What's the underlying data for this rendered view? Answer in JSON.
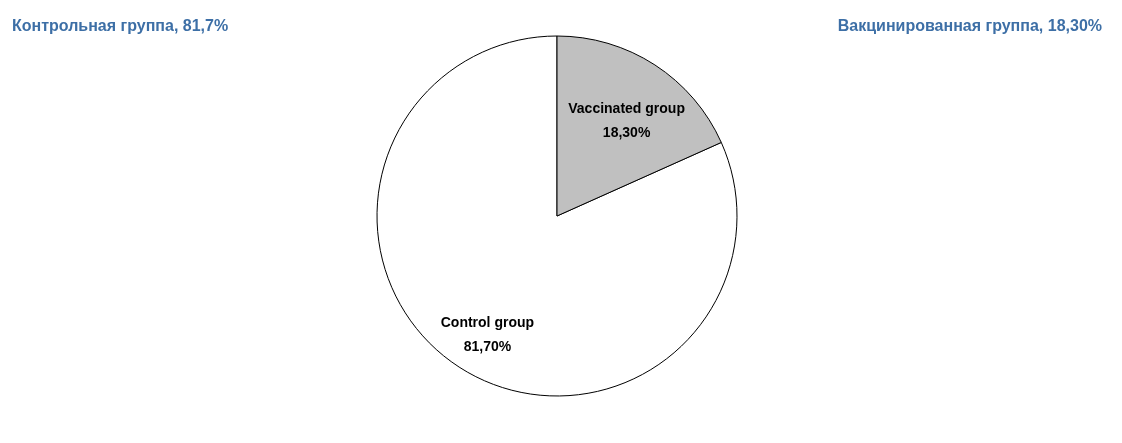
{
  "chart_data": {
    "type": "pie",
    "categories": [
      "Control group",
      "Vaccinated group"
    ],
    "values": [
      81.7,
      18.3
    ],
    "value_labels": [
      "81,70%",
      "18,30%"
    ],
    "colors": [
      "#ffffff",
      "#c0c0c0"
    ],
    "annotations": [
      "Контрольная группа, 81,7%",
      "Вакцинированная группа, 18,30%"
    ]
  }
}
